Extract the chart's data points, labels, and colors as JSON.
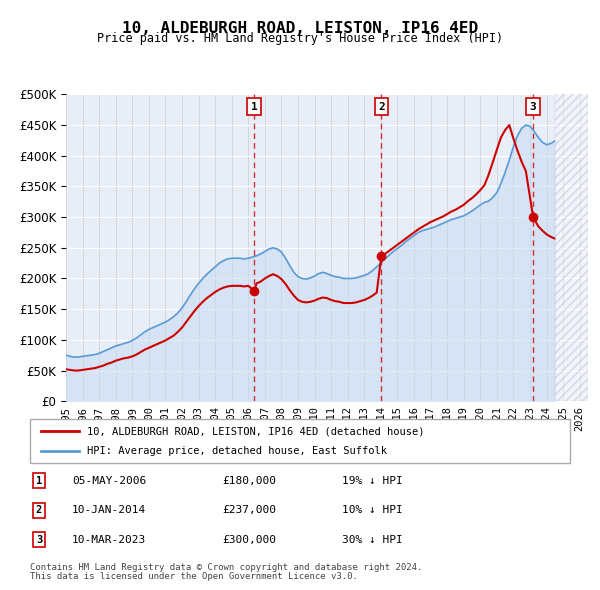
{
  "title": "10, ALDEBURGH ROAD, LEISTON, IP16 4ED",
  "subtitle": "Price paid vs. HM Land Registry's House Price Index (HPI)",
  "ylabel_ticks": [
    "£0",
    "£50K",
    "£100K",
    "£150K",
    "£200K",
    "£250K",
    "£300K",
    "£350K",
    "£400K",
    "£450K",
    "£500K"
  ],
  "ylim": [
    0,
    500000
  ],
  "xlim_start": 1995.0,
  "xlim_end": 2026.5,
  "background_color": "#f0f4ff",
  "plot_bg_color": "#e8eef8",
  "legend_label_red": "10, ALDEBURGH ROAD, LEISTON, IP16 4ED (detached house)",
  "legend_label_blue": "HPI: Average price, detached house, East Suffolk",
  "sales": [
    {
      "num": 1,
      "date": "05-MAY-2006",
      "price": 180000,
      "x": 2006.35,
      "hpi_pct": "19% ↓ HPI"
    },
    {
      "num": 2,
      "date": "10-JAN-2014",
      "price": 237000,
      "x": 2014.03,
      "hpi_pct": "10% ↓ HPI"
    },
    {
      "num": 3,
      "date": "10-MAR-2023",
      "price": 300000,
      "x": 2023.19,
      "hpi_pct": "30% ↓ HPI"
    }
  ],
  "footnote1": "Contains HM Land Registry data © Crown copyright and database right 2024.",
  "footnote2": "This data is licensed under the Open Government Licence v3.0.",
  "hpi_data_x": [
    1995.0,
    1995.25,
    1995.5,
    1995.75,
    1996.0,
    1996.25,
    1996.5,
    1996.75,
    1997.0,
    1997.25,
    1997.5,
    1997.75,
    1998.0,
    1998.25,
    1998.5,
    1998.75,
    1999.0,
    1999.25,
    1999.5,
    1999.75,
    2000.0,
    2000.25,
    2000.5,
    2000.75,
    2001.0,
    2001.25,
    2001.5,
    2001.75,
    2002.0,
    2002.25,
    2002.5,
    2002.75,
    2003.0,
    2003.25,
    2003.5,
    2003.75,
    2004.0,
    2004.25,
    2004.5,
    2004.75,
    2005.0,
    2005.25,
    2005.5,
    2005.75,
    2006.0,
    2006.25,
    2006.5,
    2006.75,
    2007.0,
    2007.25,
    2007.5,
    2007.75,
    2008.0,
    2008.25,
    2008.5,
    2008.75,
    2009.0,
    2009.25,
    2009.5,
    2009.75,
    2010.0,
    2010.25,
    2010.5,
    2010.75,
    2011.0,
    2011.25,
    2011.5,
    2011.75,
    2012.0,
    2012.25,
    2012.5,
    2012.75,
    2013.0,
    2013.25,
    2013.5,
    2013.75,
    2014.0,
    2014.25,
    2014.5,
    2014.75,
    2015.0,
    2015.25,
    2015.5,
    2015.75,
    2016.0,
    2016.25,
    2016.5,
    2016.75,
    2017.0,
    2017.25,
    2017.5,
    2017.75,
    2018.0,
    2018.25,
    2018.5,
    2018.75,
    2019.0,
    2019.25,
    2019.5,
    2019.75,
    2020.0,
    2020.25,
    2020.5,
    2020.75,
    2021.0,
    2021.25,
    2021.5,
    2021.75,
    2022.0,
    2022.25,
    2022.5,
    2022.75,
    2023.0,
    2023.25,
    2023.5,
    2023.75,
    2024.0,
    2024.25,
    2024.5
  ],
  "hpi_data_y": [
    75000,
    73000,
    72000,
    72000,
    73000,
    74000,
    75000,
    76000,
    78000,
    81000,
    84000,
    87000,
    90000,
    92000,
    94000,
    96000,
    99000,
    103000,
    108000,
    113000,
    117000,
    120000,
    123000,
    126000,
    129000,
    133000,
    138000,
    144000,
    152000,
    162000,
    173000,
    183000,
    192000,
    200000,
    207000,
    213000,
    219000,
    225000,
    229000,
    232000,
    233000,
    233000,
    233000,
    232000,
    233000,
    235000,
    237000,
    240000,
    244000,
    248000,
    250000,
    248000,
    243000,
    233000,
    221000,
    210000,
    203000,
    200000,
    199000,
    201000,
    204000,
    208000,
    210000,
    208000,
    205000,
    203000,
    202000,
    200000,
    200000,
    200000,
    201000,
    203000,
    205000,
    208000,
    213000,
    219000,
    225000,
    232000,
    238000,
    244000,
    249000,
    254000,
    260000,
    265000,
    270000,
    275000,
    278000,
    280000,
    282000,
    284000,
    287000,
    290000,
    293000,
    296000,
    298000,
    300000,
    302000,
    306000,
    310000,
    315000,
    320000,
    324000,
    326000,
    332000,
    340000,
    355000,
    373000,
    393000,
    415000,
    433000,
    445000,
    450000,
    448000,
    440000,
    430000,
    422000,
    418000,
    420000,
    424000
  ],
  "prop_data_x": [
    1995.0,
    1995.25,
    1995.5,
    1995.75,
    1996.0,
    1996.25,
    1996.5,
    1996.75,
    1997.0,
    1997.25,
    1997.5,
    1997.75,
    1998.0,
    1998.25,
    1998.5,
    1998.75,
    1999.0,
    1999.25,
    1999.5,
    1999.75,
    2000.0,
    2000.25,
    2000.5,
    2000.75,
    2001.0,
    2001.25,
    2001.5,
    2001.75,
    2002.0,
    2002.25,
    2002.5,
    2002.75,
    2003.0,
    2003.25,
    2003.5,
    2003.75,
    2004.0,
    2004.25,
    2004.5,
    2004.75,
    2005.0,
    2005.25,
    2005.5,
    2005.75,
    2006.0,
    2006.35,
    2006.5,
    2006.75,
    2007.0,
    2007.25,
    2007.5,
    2007.75,
    2008.0,
    2008.25,
    2008.5,
    2008.75,
    2009.0,
    2009.25,
    2009.5,
    2009.75,
    2010.0,
    2010.25,
    2010.5,
    2010.75,
    2011.0,
    2011.25,
    2011.5,
    2011.75,
    2012.0,
    2012.25,
    2012.5,
    2012.75,
    2013.0,
    2013.25,
    2013.5,
    2013.75,
    2014.03,
    2014.25,
    2014.5,
    2014.75,
    2015.0,
    2015.25,
    2015.5,
    2015.75,
    2016.0,
    2016.25,
    2016.5,
    2016.75,
    2017.0,
    2017.25,
    2017.5,
    2017.75,
    2018.0,
    2018.25,
    2018.5,
    2018.75,
    2019.0,
    2019.25,
    2019.5,
    2019.75,
    2020.0,
    2020.25,
    2020.5,
    2020.75,
    2021.0,
    2021.25,
    2021.5,
    2021.75,
    2022.0,
    2022.25,
    2022.5,
    2022.75,
    2023.19,
    2023.5,
    2023.75,
    2024.0,
    2024.25,
    2024.5
  ],
  "prop_data_y": [
    52000,
    51000,
    50000,
    50000,
    51000,
    52000,
    53000,
    54000,
    56000,
    58000,
    61000,
    63000,
    66000,
    68000,
    70000,
    71000,
    73000,
    76000,
    80000,
    84000,
    87000,
    90000,
    93000,
    96000,
    99000,
    103000,
    107000,
    113000,
    120000,
    129000,
    138000,
    147000,
    155000,
    162000,
    168000,
    173000,
    178000,
    182000,
    185000,
    187000,
    188000,
    188000,
    188000,
    187000,
    188000,
    180000,
    192000,
    195000,
    200000,
    204000,
    207000,
    204000,
    199000,
    191000,
    181000,
    172000,
    165000,
    162000,
    161000,
    162000,
    164000,
    167000,
    169000,
    168000,
    165000,
    163000,
    162000,
    160000,
    160000,
    160000,
    161000,
    163000,
    165000,
    168000,
    172000,
    177000,
    237000,
    240000,
    245000,
    250000,
    255000,
    260000,
    265000,
    270000,
    275000,
    280000,
    284000,
    288000,
    292000,
    295000,
    298000,
    301000,
    305000,
    309000,
    312000,
    316000,
    320000,
    326000,
    331000,
    337000,
    344000,
    352000,
    369000,
    389000,
    410000,
    430000,
    442000,
    450000,
    428000,
    408000,
    390000,
    375000,
    300000,
    285000,
    278000,
    272000,
    268000,
    265000
  ]
}
